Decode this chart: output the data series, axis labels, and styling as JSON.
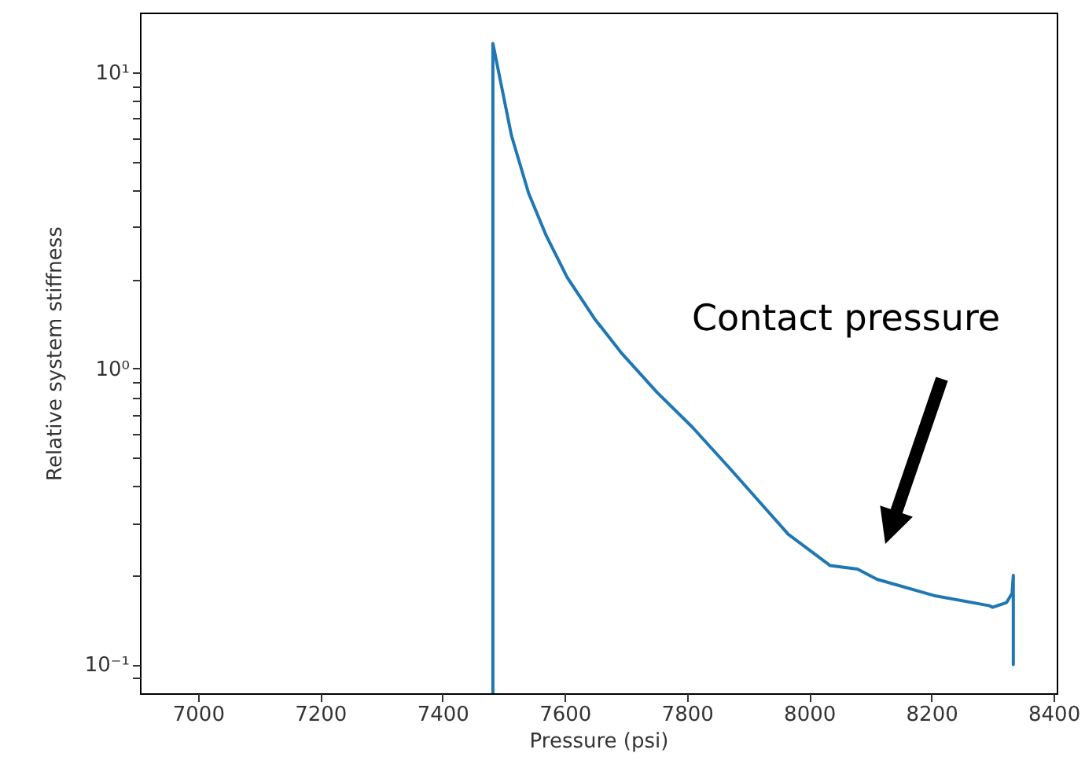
{
  "chart_data": {
    "type": "line",
    "xlabel": "Pressure (psi)",
    "ylabel": "Relative system stiffness",
    "x": [
      7482.5,
      7482.5,
      7513,
      7541,
      7570,
      7604,
      7649,
      7694,
      7751,
      7808,
      7870,
      7921,
      7966,
      8034,
      8079,
      8111,
      8204,
      8295,
      8300,
      8323,
      8332,
      8334,
      8334
    ],
    "series": [
      {
        "color": "#1f77b4",
        "values": [
          0.08,
          12.5,
          6.1,
          3.9,
          2.8,
          2.03,
          1.47,
          1.12,
          0.83,
          0.636,
          0.46,
          0.35,
          0.275,
          0.216,
          0.21,
          0.194,
          0.171,
          0.158,
          0.156,
          0.162,
          0.174,
          0.2,
          0.1
        ]
      }
    ],
    "xlim": [
      6905,
      8405
    ],
    "xticks": [
      7000,
      7200,
      7400,
      7600,
      7800,
      8000,
      8200,
      8400
    ],
    "ylim": [
      0.08,
      15.9
    ],
    "log": "y",
    "yticks": [
      {
        "value": 0.09,
        "label": null
      },
      {
        "value": 0.1,
        "label": "10⁻¹"
      },
      {
        "value": 0.2,
        "label": null
      },
      {
        "value": 0.3,
        "label": null
      },
      {
        "value": 0.4,
        "label": null
      },
      {
        "value": 0.5,
        "label": null
      },
      {
        "value": 0.6,
        "label": null
      },
      {
        "value": 0.7,
        "label": null
      },
      {
        "value": 0.8,
        "label": null
      },
      {
        "value": 0.9,
        "label": null
      },
      {
        "value": 1,
        "label": "10⁰"
      },
      {
        "value": 2,
        "label": null
      },
      {
        "value": 3,
        "label": null
      },
      {
        "value": 4,
        "label": null
      },
      {
        "value": 5,
        "label": null
      },
      {
        "value": 6,
        "label": null
      },
      {
        "value": 7,
        "label": null
      },
      {
        "value": 8,
        "label": null
      },
      {
        "value": 9,
        "label": null
      },
      {
        "value": 10,
        "label": "10¹"
      }
    ],
    "annotations": [
      "Contact pressure"
    ],
    "grid": false,
    "marker": "none",
    "line_style": "solid"
  }
}
